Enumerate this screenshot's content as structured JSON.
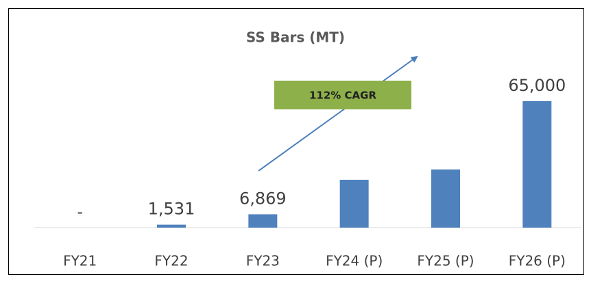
{
  "chart_data": {
    "type": "bar",
    "title": "SS Bars (MT)",
    "categories": [
      "FY21",
      "FY22",
      "FY23",
      "FY24 (P)",
      "FY25 (P)",
      "FY26 (P)"
    ],
    "values": [
      0,
      1531,
      6869,
      24600,
      29900,
      65000
    ],
    "value_labels": [
      "-",
      "1,531",
      "6,869",
      null,
      null,
      "65,000"
    ],
    "color": "#4f81bd",
    "annotations": [
      "112% CAGR"
    ]
  }
}
